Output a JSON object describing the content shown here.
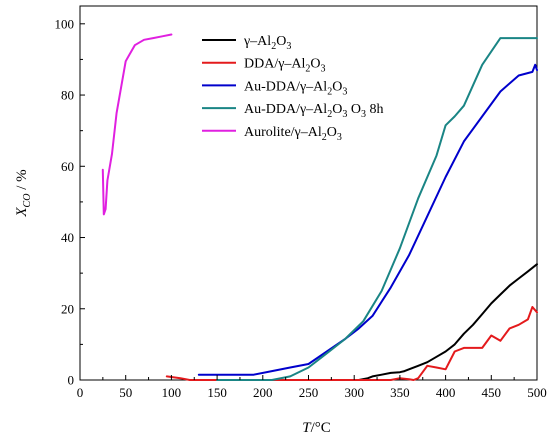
{
  "chart_data": {
    "type": "line",
    "title": "",
    "xlabel": {
      "main": "T",
      "sep": "/",
      "unit": "°C"
    },
    "ylabel": {
      "main": "X",
      "sub": "CO",
      "sep": " / ",
      "unit": "%"
    },
    "xlim": [
      0,
      500
    ],
    "ylim": [
      0,
      105
    ],
    "xticks": [
      0,
      50,
      100,
      150,
      200,
      250,
      300,
      350,
      400,
      450,
      500
    ],
    "yticks": [
      0,
      20,
      40,
      60,
      80,
      100
    ],
    "grid": false,
    "legend_position": "top-center",
    "series": [
      {
        "name": "γ–Al2O3",
        "label_parts": [
          [
            "γ–Al",
            ""
          ],
          [
            "2",
            "sub"
          ],
          [
            "O",
            ""
          ],
          [
            "3",
            "sub"
          ]
        ],
        "color": "#000000",
        "x": [
          305,
          315,
          320,
          330,
          340,
          350,
          355,
          360,
          370,
          380,
          390,
          400,
          410,
          420,
          430,
          440,
          450,
          460,
          470,
          480,
          490,
          500
        ],
        "y": [
          0,
          0.5,
          1,
          1.5,
          2,
          2.2,
          2.5,
          3,
          4,
          5,
          6.5,
          8,
          10,
          13,
          15.5,
          18.5,
          21.5,
          24,
          26.5,
          28.5,
          30.5,
          32.5
        ]
      },
      {
        "name": "DDA/γ–Al2O3",
        "label_parts": [
          [
            "DDA/γ–Al",
            ""
          ],
          [
            "2",
            "sub"
          ],
          [
            "O",
            ""
          ],
          [
            "3",
            "sub"
          ]
        ],
        "color": "#e41a1c",
        "x": [
          95,
          110,
          120,
          340,
          350,
          360,
          365,
          370,
          380,
          390,
          400,
          410,
          420,
          430,
          440,
          450,
          460,
          470,
          480,
          490,
          495,
          500
        ],
        "y": [
          1,
          0.5,
          0,
          0,
          0.5,
          0.2,
          0,
          0.5,
          4,
          3.5,
          3,
          8,
          9,
          9,
          9,
          12.5,
          11,
          14.5,
          15.5,
          17,
          20.5,
          19
        ]
      },
      {
        "name": "Au-DDA/γ–Al2O3",
        "label_parts": [
          [
            "Au-DDA/γ–Al",
            ""
          ],
          [
            "2",
            "sub"
          ],
          [
            "O",
            ""
          ],
          [
            "3",
            "sub"
          ]
        ],
        "color": "#0000cc",
        "x": [
          130,
          150,
          170,
          190,
          210,
          230,
          250,
          270,
          290,
          305,
          320,
          340,
          360,
          380,
          400,
          420,
          440,
          460,
          480,
          495,
          498,
          500
        ],
        "y": [
          1.5,
          1.5,
          1.5,
          1.5,
          2.5,
          3.5,
          4.5,
          8,
          11.5,
          14.5,
          18,
          26,
          35,
          46,
          57,
          67,
          74,
          81,
          85.5,
          86.5,
          88.5,
          87
        ]
      },
      {
        "name": "Au-DDA/γ–Al2O3 O3 8h",
        "label_parts": [
          [
            "Au-DDA/γ–Al",
            ""
          ],
          [
            "2",
            "sub"
          ],
          [
            "O",
            ""
          ],
          [
            "3",
            "sub"
          ],
          [
            " O",
            ""
          ],
          [
            "3",
            "sub"
          ],
          [
            " 8h",
            ""
          ]
        ],
        "color": "#1a8585",
        "x": [
          150,
          170,
          190,
          210,
          230,
          250,
          270,
          290,
          310,
          330,
          350,
          370,
          390,
          400,
          410,
          420,
          440,
          460,
          480,
          500
        ],
        "y": [
          0,
          0,
          0,
          0,
          1,
          3.5,
          7.5,
          11.5,
          16.5,
          25,
          37,
          51,
          63,
          71.5,
          74,
          77,
          88.5,
          96,
          96,
          96
        ]
      },
      {
        "name": "Aurolite/γ–Al2O3",
        "label_parts": [
          [
            "Aurolite/γ–Al",
            ""
          ],
          [
            "2",
            "sub"
          ],
          [
            "O",
            ""
          ],
          [
            "3",
            "sub"
          ]
        ],
        "color": "#e020e0",
        "x": [
          25,
          26,
          28,
          30,
          35,
          40,
          50,
          60,
          70,
          80,
          90,
          100
        ],
        "y": [
          59,
          46.5,
          48,
          56,
          63.5,
          75,
          89.5,
          94,
          95.5,
          96,
          96.5,
          97
        ]
      }
    ]
  }
}
